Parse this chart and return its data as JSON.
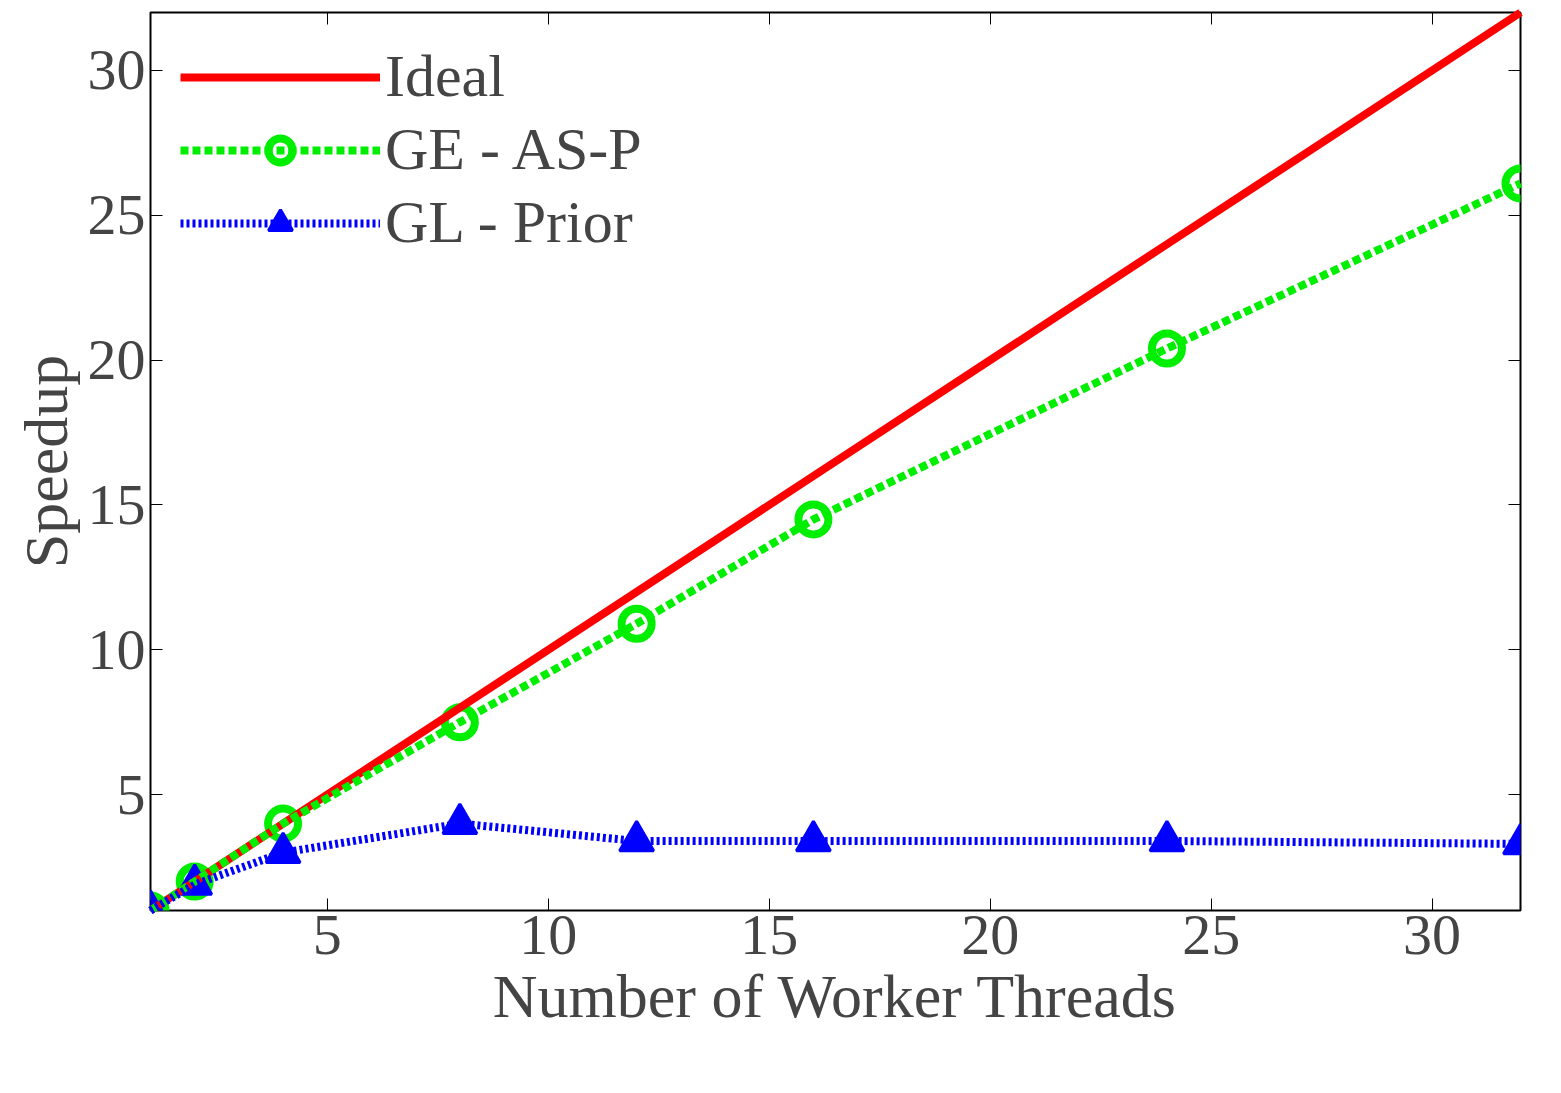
{
  "chart_data": {
    "type": "line",
    "xlabel": "Number of Worker Threads",
    "ylabel": "Speedup",
    "x": [
      1,
      2,
      4,
      8,
      12,
      16,
      24,
      32
    ],
    "series": [
      {
        "name": "Ideal",
        "color": "#ff0000",
        "values": [
          1,
          2,
          4,
          8,
          12,
          16,
          24,
          32
        ],
        "marker": "none",
        "line_style": "solid"
      },
      {
        "name": "GE - AS-P",
        "color": "#00ee00",
        "values": [
          1,
          2.0,
          4.0,
          7.5,
          10.9,
          14.5,
          20.4,
          26.1
        ],
        "marker": "circle",
        "line_style": "dashed"
      },
      {
        "name": "GL - Prior",
        "color": "#0000ff",
        "values": [
          1,
          1.9,
          3.0,
          4.0,
          3.4,
          3.4,
          3.4,
          3.3
        ],
        "marker": "triangle",
        "line_style": "dotted"
      }
    ],
    "xlim": [
      1,
      32
    ],
    "ylim": [
      1,
      32
    ],
    "xticks": [
      5,
      10,
      15,
      20,
      25,
      30
    ],
    "yticks": [
      5,
      10,
      15,
      20,
      25,
      30
    ],
    "grid": false,
    "legend": "top left"
  }
}
